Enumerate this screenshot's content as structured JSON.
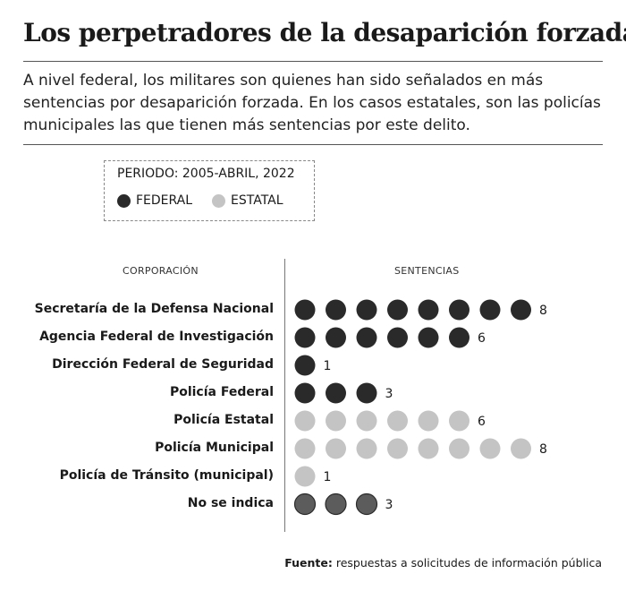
{
  "title": "Los perpetradores de la desaparición forzada",
  "subtitle": "A nivel federal, los militares son quienes han sido señalados en más sentencias por desaparición forzada. En los casos estatales, son las policías municipales las que tienen más sentencias por este delito.",
  "legend": {
    "period": "PERIODO: 2005-ABRIL, 2022",
    "federal_label": "FEDERAL",
    "estatal_label": "ESTATAL"
  },
  "columns": {
    "left": "CORPORACIÓN",
    "right": "SENTENCIAS"
  },
  "source": {
    "label": "Fuente:",
    "text": "respuestas a solicitudes de información pública"
  },
  "colors": {
    "federal": "#2a2a2a",
    "estatal": "#c4c4c4",
    "no_indica": "#5c5c5c"
  },
  "chart_data": {
    "type": "scatter",
    "categories": [
      "Secretaría de la Defensa Nacional",
      "Agencia Federal de Investigación",
      "Dirección Federal de Seguridad",
      "Policía Federal",
      "Policía Estatal",
      "Policía Municipal",
      "Policía de Tránsito (municipal)",
      "No se indica"
    ],
    "values": [
      8,
      6,
      1,
      3,
      6,
      8,
      1,
      3
    ],
    "groups": [
      "federal",
      "federal",
      "federal",
      "federal",
      "estatal",
      "estatal",
      "estatal",
      "no_indica"
    ]
  }
}
